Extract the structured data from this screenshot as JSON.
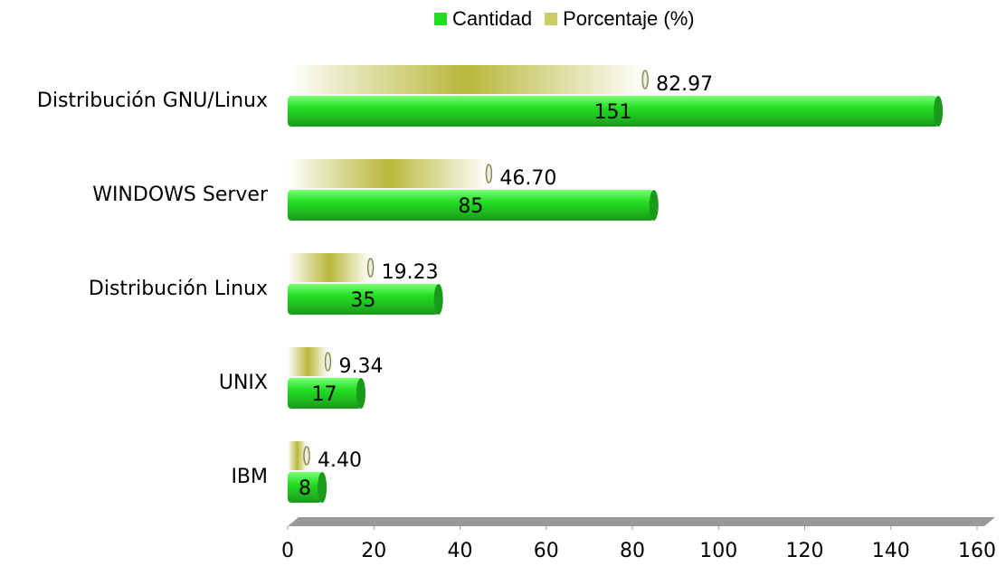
{
  "chart_data": {
    "type": "bar",
    "orientation": "horizontal",
    "categories": [
      "Distribución GNU/Linux",
      "WINDOWS Server",
      "Distribución Linux",
      "UNIX",
      "IBM"
    ],
    "series": [
      {
        "name": "Porcentaje (%)",
        "color": "#b8b83a",
        "values": [
          82.97,
          46.7,
          19.23,
          9.34,
          4.4
        ],
        "value_labels": [
          "82.97",
          "46.70",
          "19.23",
          "9.34",
          "4.40"
        ]
      },
      {
        "name": "Cantidad",
        "color": "#22dd22",
        "values": [
          151,
          85,
          35,
          17,
          8
        ]
      }
    ],
    "xlim": [
      0,
      160
    ],
    "xticks": [
      0,
      20,
      40,
      60,
      80,
      100,
      120,
      140,
      160
    ],
    "legend": "top"
  }
}
